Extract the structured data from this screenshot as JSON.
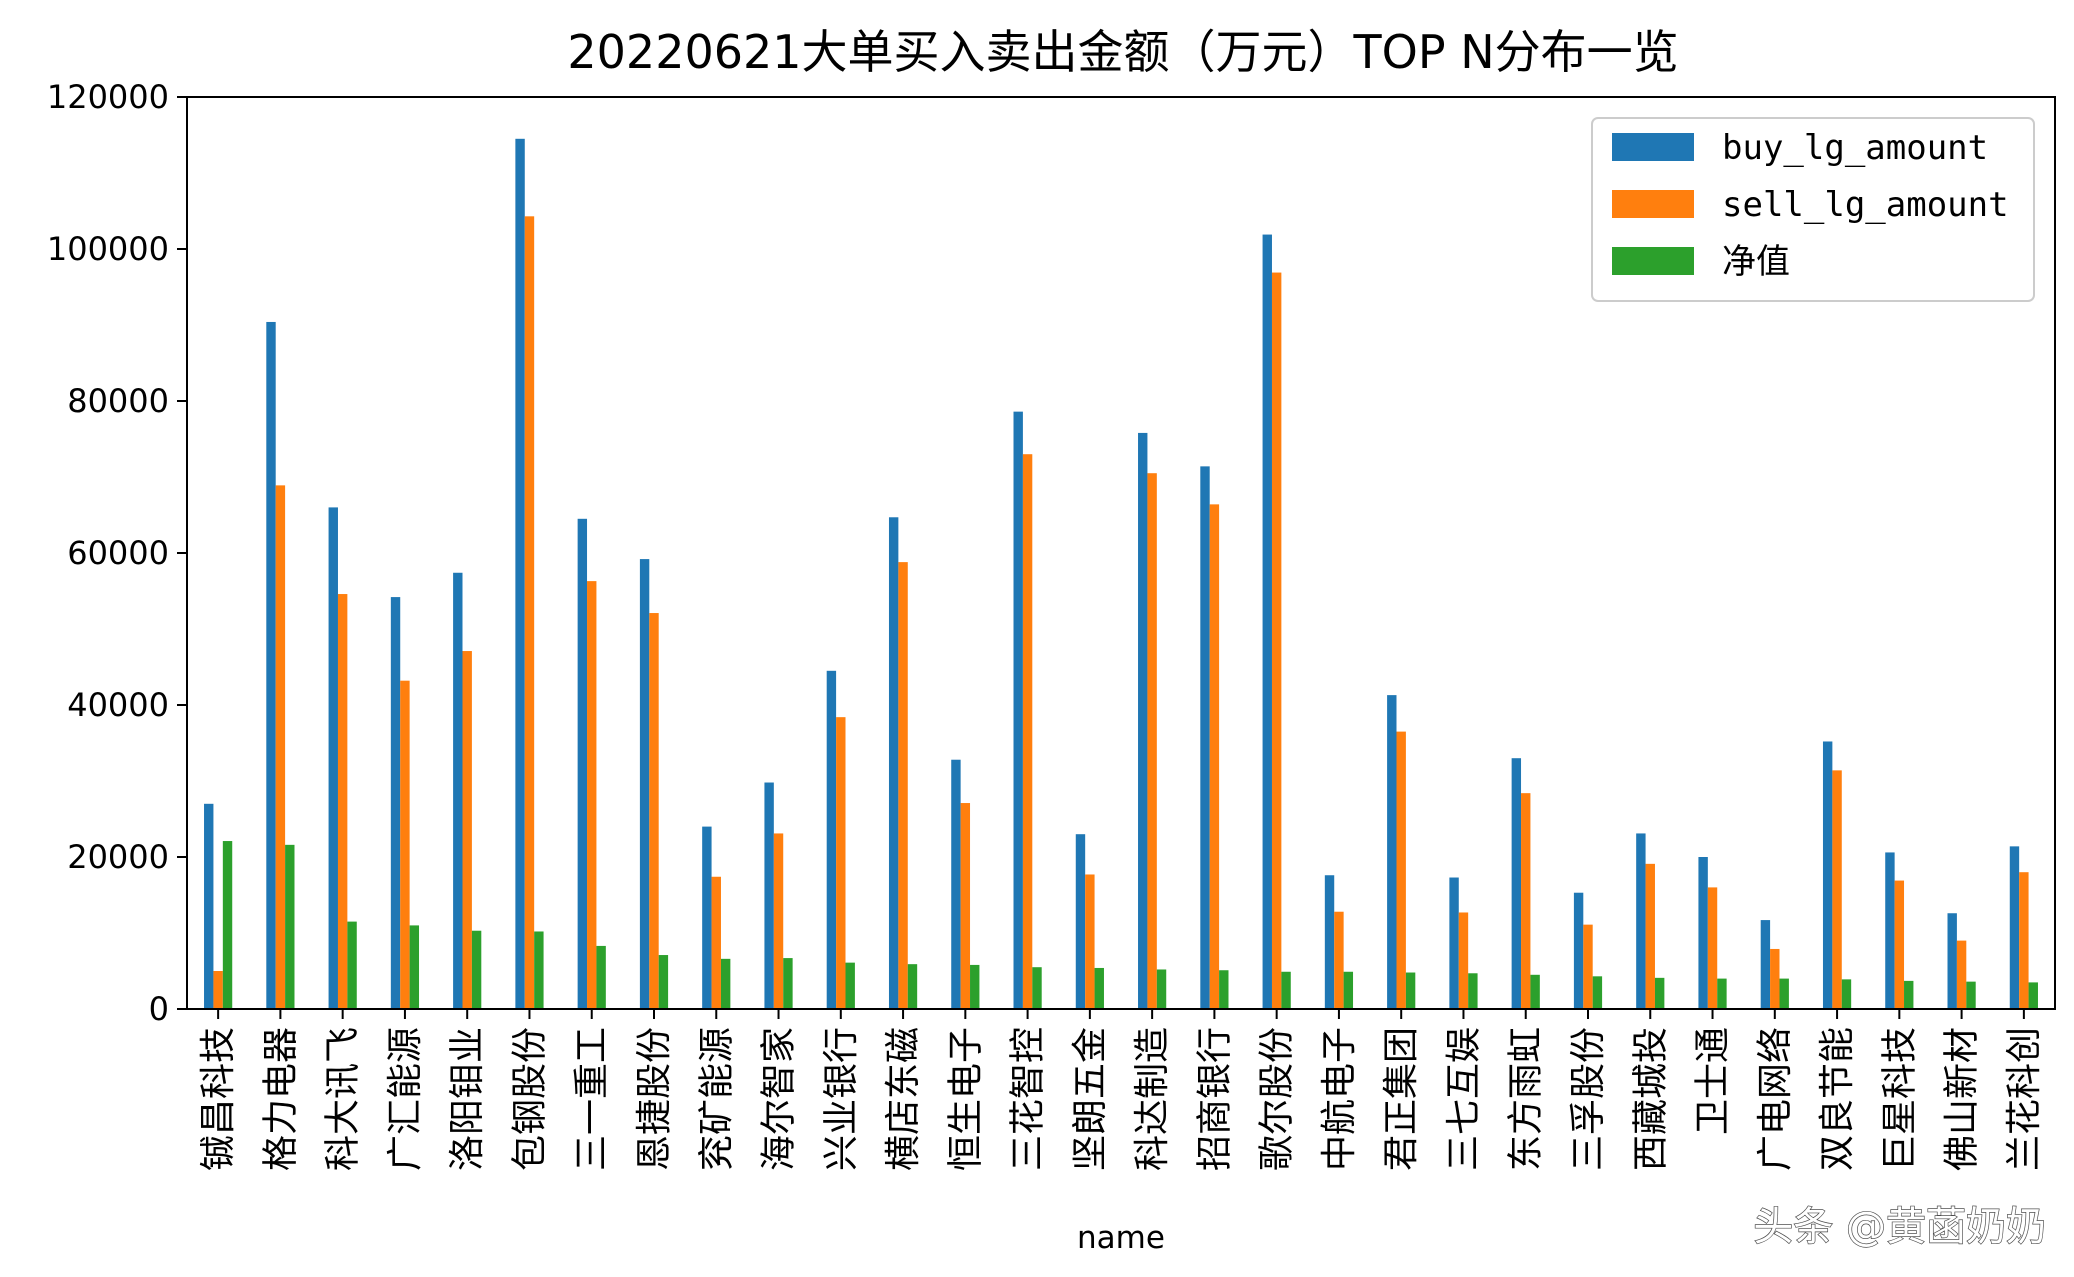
{
  "chart_data": {
    "type": "bar",
    "title": "20220621大单买入卖出金额（万元）TOP N分布一览",
    "xlabel": "name",
    "ylabel": "",
    "ylim": [
      0,
      120000
    ],
    "yticks": [
      0,
      20000,
      40000,
      60000,
      80000,
      100000,
      120000
    ],
    "grid": false,
    "legend_position": "top-right",
    "categories": [
      "铖昌科技",
      "格力电器",
      "科大讯飞",
      "广汇能源",
      "洛阳钼业",
      "包钢股份",
      "三一重工",
      "恩捷股份",
      "兖矿能源",
      "海尔智家",
      "兴业银行",
      "横店东磁",
      "恒生电子",
      "三花智控",
      "坚朗五金",
      "科达制造",
      "招商银行",
      "歌尔股份",
      "中航电子",
      "君正集团",
      "三七互娱",
      "东方雨虹",
      "三孚股份",
      "西藏城投",
      "卫士通",
      "广电网络",
      "双良节能",
      "巨星科技",
      "佛山新材",
      "兰花科创"
    ],
    "series": [
      {
        "name": "buy_lg_amount",
        "color": "#1f77b4",
        "values": [
          27000,
          90400,
          66000,
          54200,
          57400,
          114500,
          64500,
          59200,
          24000,
          29800,
          44500,
          64700,
          32800,
          78600,
          23000,
          75800,
          71400,
          101900,
          17600,
          41300,
          17300,
          33000,
          15300,
          23100,
          20000,
          11700,
          35200,
          20600,
          12600,
          21400
        ]
      },
      {
        "name": "sell_lg_amount",
        "color": "#ff7f0e",
        "values": [
          5000,
          68900,
          54600,
          43200,
          47100,
          104300,
          56300,
          52100,
          17400,
          23100,
          38400,
          58800,
          27100,
          73000,
          17700,
          70500,
          66400,
          96900,
          12800,
          36500,
          12700,
          28400,
          11100,
          19100,
          16000,
          7900,
          31400,
          16900,
          9000,
          18000
        ]
      },
      {
        "name": "净值",
        "color": "#2ca02c",
        "values": [
          22100,
          21600,
          11500,
          11000,
          10300,
          10200,
          8300,
          7100,
          6600,
          6700,
          6100,
          5900,
          5800,
          5500,
          5400,
          5200,
          5100,
          4900,
          4900,
          4800,
          4700,
          4500,
          4300,
          4100,
          4000,
          4000,
          3900,
          3700,
          3600,
          3500
        ]
      }
    ]
  },
  "watermark": "头条 @黄菡奶奶"
}
